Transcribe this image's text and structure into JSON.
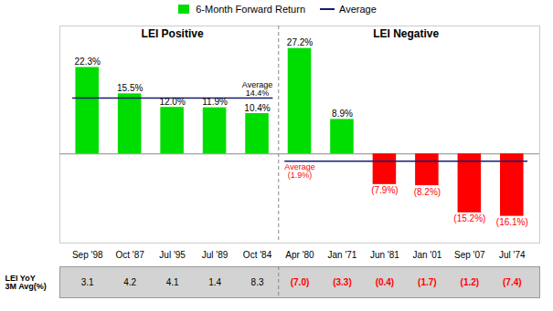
{
  "chart_data": {
    "type": "bar",
    "categories": [
      "Sep '98",
      "Oct '87",
      "Jul '95",
      "Jul '89",
      "Oct '84",
      "Apr '80",
      "Jan '71",
      "Jun '81",
      "Jan '01",
      "Sep '07",
      "Jul '74"
    ],
    "series": [
      {
        "name": "6-Month Forward Return",
        "type": "bar",
        "color": "#00dd00",
        "colors": [
          "#00dd00",
          "#00dd00",
          "#00dd00",
          "#00dd00",
          "#00dd00",
          "#00dd00",
          "#00dd00",
          "#ff0000",
          "#ff0000",
          "#ff0000",
          "#ff0000"
        ],
        "values": [
          22.3,
          15.5,
          12.0,
          11.9,
          10.4,
          27.2,
          8.9,
          -7.9,
          -8.2,
          -15.2,
          -16.1
        ],
        "value_labels": [
          "22.3%",
          "15.5%",
          "12.0%",
          "11.9%",
          "10.4%",
          "27.2%",
          "8.9%",
          "(7.9%)",
          "(8.2%)",
          "(15.2%)",
          "(16.1%)"
        ],
        "label_colors": [
          "black",
          "black",
          "black",
          "black",
          "black",
          "black",
          "black",
          "red",
          "red",
          "red",
          "red"
        ]
      },
      {
        "name": "Average",
        "type": "line",
        "color": "#1a1a6e",
        "values": [
          14.4,
          14.4,
          14.4,
          14.4,
          14.4,
          -1.9,
          -1.9,
          -1.9,
          -1.9,
          -1.9,
          -1.9
        ]
      }
    ],
    "data_labels": true,
    "sections": [
      {
        "label": "LEI Positive",
        "categories": [
          "Sep '98",
          "Oct '87",
          "Jul '95",
          "Jul '89",
          "Oct '84"
        ]
      },
      {
        "label": "LEI Negative",
        "categories": [
          "Apr '80",
          "Jan '71",
          "Jun '81",
          "Jan '01",
          "Sep '07",
          "Jul '74"
        ]
      }
    ],
    "annotations": [
      {
        "text": "Average\n14.4%",
        "category": "Oct '84",
        "value": 14.4,
        "color": "black"
      },
      {
        "text": "Average\n(1.9%)",
        "category": "Apr '80",
        "value": -1.9,
        "color": "red"
      }
    ],
    "table": {
      "header": "LEI YoY\n3M Avg(%)",
      "values": [
        3.1,
        4.2,
        4.1,
        1.4,
        8.3,
        -7.0,
        -3.3,
        -0.4,
        -1.7,
        -1.2,
        -7.4
      ],
      "value_labels": [
        "3.1",
        "4.2",
        "4.1",
        "1.4",
        "8.3",
        "(7.0)",
        "(3.3)",
        "(0.4)",
        "(1.7)",
        "(1.2)",
        "(7.4)"
      ],
      "colors": [
        "black",
        "black",
        "black",
        "black",
        "black",
        "red",
        "red",
        "red",
        "red",
        "red",
        "red"
      ],
      "background": "#d3d3d3"
    },
    "ylim": [
      -23,
      33
    ],
    "tick_labels": "x",
    "legend": "top"
  }
}
